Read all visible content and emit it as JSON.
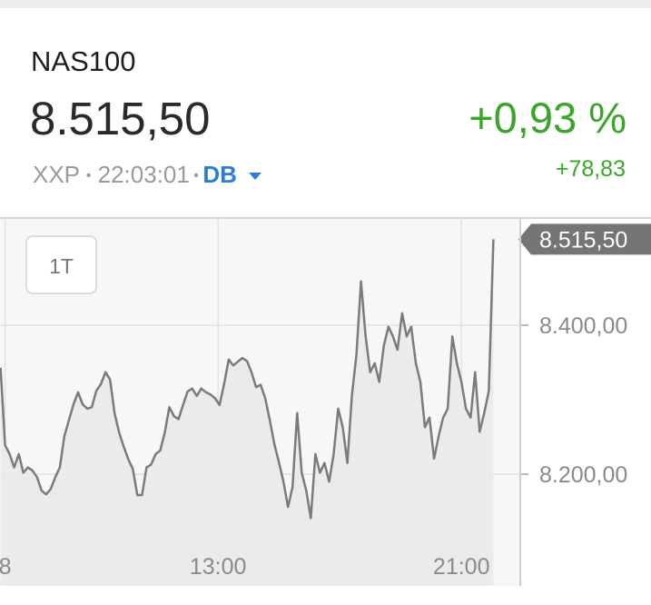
{
  "quote": {
    "symbol": "NAS100",
    "price": "8.515,50",
    "change_percent": "+0,93 %",
    "change": "+78,83",
    "exchange": "XXP",
    "time": "22:03:01",
    "source": "DB"
  },
  "chart_data": {
    "type": "line",
    "timeframe": "1T",
    "x": [
      351,
      360,
      369,
      378,
      387,
      396,
      405,
      414,
      423,
      432,
      441,
      450,
      459,
      468,
      477,
      486,
      495,
      504,
      513,
      522,
      531,
      540,
      549,
      558,
      567,
      576,
      585,
      594,
      603,
      612,
      621,
      630,
      639,
      648,
      657,
      666,
      675,
      684,
      693,
      702,
      711,
      720,
      729,
      738,
      747,
      756,
      765,
      774,
      783,
      792,
      801,
      810,
      819,
      828,
      837,
      846,
      855,
      864,
      873,
      882,
      891,
      900,
      909,
      918,
      927,
      936,
      945,
      954,
      963,
      972,
      981,
      990,
      999,
      1008,
      1017,
      1026,
      1035,
      1044,
      1053,
      1062,
      1071,
      1080,
      1089,
      1098,
      1107,
      1116,
      1125,
      1134,
      1143,
      1152,
      1161,
      1170,
      1179,
      1188,
      1197,
      1206,
      1215,
      1224,
      1233,
      1242,
      1251,
      1260,
      1269,
      1278,
      1287,
      1296,
      1305,
      1314,
      1323
    ],
    "series": [
      {
        "color": "#7b7b7b",
        "values": [
          8343,
          8239,
          8227,
          8209,
          8227,
          8202,
          8209,
          8205,
          8196,
          8178,
          8173,
          8180,
          8196,
          8209,
          8251,
          8273,
          8294,
          8310,
          8294,
          8288,
          8290,
          8312,
          8321,
          8337,
          8327,
          8282,
          8256,
          8237,
          8220,
          8207,
          8172,
          8172,
          8209,
          8213,
          8227,
          8232,
          8256,
          8290,
          8278,
          8274,
          8293,
          8311,
          8315,
          8305,
          8315,
          8310,
          8307,
          8302,
          8293,
          8321,
          8354,
          8346,
          8351,
          8356,
          8352,
          8337,
          8317,
          8320,
          8302,
          8273,
          8241,
          8216,
          8190,
          8156,
          8183,
          8282,
          8202,
          8178,
          8141,
          8227,
          8202,
          8215,
          8190,
          8227,
          8288,
          8263,
          8215,
          8306,
          8361,
          8459,
          8385,
          8337,
          8349,
          8324,
          8373,
          8398,
          8385,
          8367,
          8416,
          8385,
          8398,
          8349,
          8324,
          8263,
          8276,
          8221,
          8251,
          8276,
          8288,
          8385,
          8349,
          8324,
          8288,
          8276,
          8337,
          8257,
          8282,
          8312,
          8515.5
        ]
      }
    ],
    "xlim": [
      350,
      1376
    ],
    "xticks": [
      {
        "value": 360,
        "label": "8"
      },
      {
        "value": 780,
        "label": "13:00"
      },
      {
        "value": 1260,
        "label": "21:00"
      }
    ],
    "ylim": [
      8050,
      8544
    ],
    "yticks": [
      {
        "value": 8200,
        "label": "8.200,00"
      },
      {
        "value": 8400,
        "label": "8.400,00"
      }
    ],
    "grid": true
  }
}
